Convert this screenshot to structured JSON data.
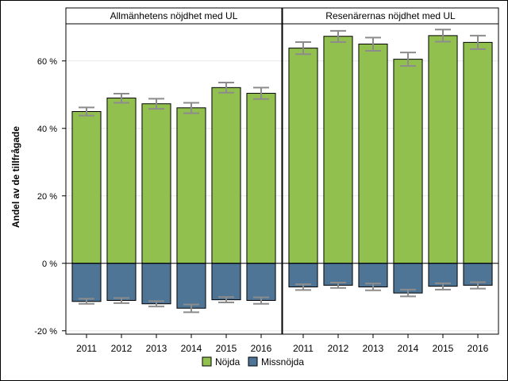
{
  "chart_data": {
    "type": "bar",
    "stacked_diverging": true,
    "ylabel": "Andel av de tillfrågade",
    "xlabel": "",
    "ylim": [
      -21,
      71
    ],
    "y_ticks": [
      -20,
      0,
      20,
      40,
      60
    ],
    "y_tick_labels": [
      "-20 %",
      "0 %",
      "20 %",
      "40 %",
      "60 %"
    ],
    "grid": true,
    "legend_position": "bottom",
    "colors": {
      "Nöjda": "#92c04f",
      "Missnöjda": "#4e7596",
      "error_bar": "#8c8c8c",
      "frame": "#000000"
    },
    "panels": [
      {
        "title": "Allmänhetens nöjdhet med UL",
        "categories": [
          "2011",
          "2012",
          "2013",
          "2014",
          "2015",
          "2016"
        ],
        "series": [
          {
            "name": "Nöjda",
            "values": [
              45.0,
              49.0,
              47.3,
              46.1,
              52.1,
              50.4
            ],
            "error_low": [
              43.8,
              47.6,
              45.8,
              44.5,
              50.6,
              48.7
            ],
            "error_high": [
              46.2,
              50.3,
              48.8,
              47.6,
              53.6,
              52.1
            ]
          },
          {
            "name": "Missnöjda",
            "values": [
              -11.3,
              -11.0,
              -12.0,
              -13.3,
              -10.8,
              -11.0
            ],
            "error_low": [
              -12.0,
              -11.8,
              -12.8,
              -14.5,
              -11.6,
              -12.0
            ],
            "error_high": [
              -10.5,
              -10.3,
              -11.2,
              -12.2,
              -10.0,
              -10.1
            ]
          }
        ]
      },
      {
        "title": "Resenärernas nöjdhet med UL",
        "categories": [
          "2011",
          "2012",
          "2013",
          "2014",
          "2015",
          "2016"
        ],
        "series": [
          {
            "name": "Nöjda",
            "values": [
              63.8,
              67.3,
              65.0,
              60.5,
              67.5,
              65.5
            ],
            "error_low": [
              62.0,
              65.6,
              63.0,
              58.5,
              65.7,
              63.5
            ],
            "error_high": [
              65.6,
              68.9,
              66.9,
              62.5,
              69.3,
              67.5
            ]
          },
          {
            "name": "Missnöjda",
            "values": [
              -7.0,
              -6.5,
              -7.0,
              -8.8,
              -6.8,
              -6.5
            ],
            "error_low": [
              -7.9,
              -7.3,
              -8.0,
              -9.8,
              -7.8,
              -7.5
            ],
            "error_high": [
              -6.2,
              -5.7,
              -6.0,
              -7.8,
              -5.9,
              -5.6
            ]
          }
        ]
      }
    ],
    "legend": [
      "Nöjda",
      "Missnöjda"
    ]
  }
}
